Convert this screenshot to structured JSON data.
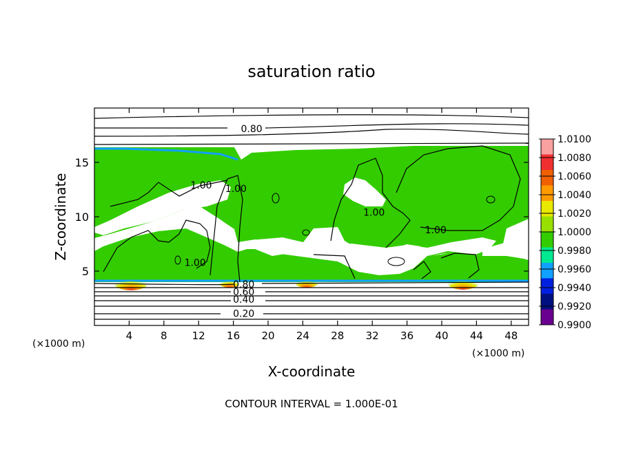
{
  "chart_data": {
    "type": "heatmap",
    "title": "saturation ratio",
    "xlabel": "X-coordinate",
    "ylabel": "Z-coordinate",
    "x_unit_left": "(×1000 m)",
    "x_unit_right": "(×1000 m)",
    "xlim": [
      0,
      50
    ],
    "ylim": [
      0,
      20
    ],
    "x_ticks": [
      4,
      8,
      12,
      16,
      20,
      24,
      28,
      32,
      36,
      40,
      44,
      48
    ],
    "y_ticks": [
      5,
      10,
      15
    ],
    "footer": "CONTOUR INTERVAL = 1.000E-01",
    "colorbar": {
      "min": 0.99,
      "max": 1.01,
      "labels": [
        "1.0100",
        "1.0080",
        "1.0060",
        "1.0040",
        "1.0020",
        "1.0000",
        "0.9980",
        "0.9960",
        "0.9940",
        "0.9920",
        "0.9900"
      ],
      "colors": [
        "#f9a0a0",
        "#f03030",
        "#f06000",
        "#ff9a00",
        "#e8e800",
        "#98e000",
        "#33cc00",
        "#00e890",
        "#10a0ff",
        "#0020e0",
        "#001080",
        "#6a0090"
      ]
    },
    "contour_labels": [
      {
        "text": "0.80",
        "x": 18.1,
        "z": 18.1
      },
      {
        "text": "0.80",
        "x": 17.2,
        "z": 3.8
      },
      {
        "text": "0.60",
        "x": 17.2,
        "z": 3.1
      },
      {
        "text": "0.40",
        "x": 17.2,
        "z": 2.4
      },
      {
        "text": "0.20",
        "x": 17.2,
        "z": 1.1
      },
      {
        "text": "1.00",
        "x": 12.3,
        "z": 12.9
      },
      {
        "text": "1.00",
        "x": 16.3,
        "z": 12.6
      },
      {
        "text": "1.00",
        "x": 32.2,
        "z": 10.4
      },
      {
        "text": "1.00",
        "x": 39.3,
        "z": 8.8
      },
      {
        "text": "1.00",
        "x": 11.6,
        "z": 5.8
      }
    ],
    "supersaturated_hotspots_x": [
      3.5,
      15.5,
      24.5,
      42.5
    ]
  }
}
